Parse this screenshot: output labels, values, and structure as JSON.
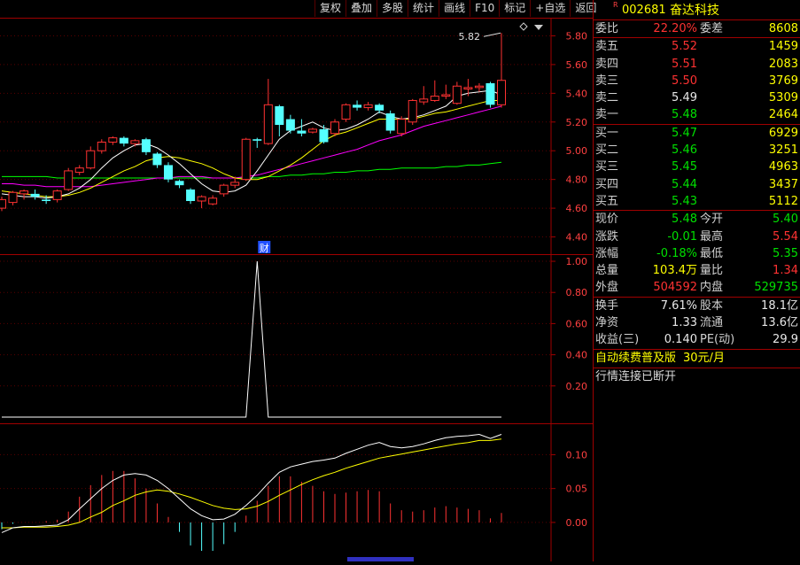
{
  "toolbar": [
    "复权",
    "叠加",
    "多股",
    "统计",
    "画线",
    "F10",
    "标记",
    "+自选",
    "返回"
  ],
  "stock": {
    "code": "002681",
    "name": "奋达科技",
    "flag": "R"
  },
  "weibi": {
    "label": "委比",
    "value": "22.20%",
    "label2": "委差",
    "value2": "8608"
  },
  "asks": [
    {
      "label": "卖五",
      "price": "5.52",
      "vol": "1459",
      "color": "red"
    },
    {
      "label": "卖四",
      "price": "5.51",
      "vol": "2083",
      "color": "red"
    },
    {
      "label": "卖三",
      "price": "5.50",
      "vol": "3769",
      "color": "red"
    },
    {
      "label": "卖二",
      "price": "5.49",
      "vol": "5309",
      "color": "white"
    },
    {
      "label": "卖一",
      "price": "5.48",
      "vol": "2464",
      "color": "green"
    }
  ],
  "bids": [
    {
      "label": "买一",
      "price": "5.47",
      "vol": "6929",
      "color": "green"
    },
    {
      "label": "买二",
      "price": "5.46",
      "vol": "3251",
      "color": "green"
    },
    {
      "label": "买三",
      "price": "5.45",
      "vol": "4963",
      "color": "green"
    },
    {
      "label": "买四",
      "price": "5.44",
      "vol": "3437",
      "color": "green"
    },
    {
      "label": "买五",
      "price": "5.43",
      "vol": "5112",
      "color": "green"
    }
  ],
  "quote": [
    {
      "l1": "现价",
      "v1": "5.48",
      "c1": "green",
      "l2": "今开",
      "v2": "5.40",
      "c2": "green"
    },
    {
      "l1": "涨跌",
      "v1": "-0.01",
      "c1": "green",
      "l2": "最高",
      "v2": "5.54",
      "c2": "red"
    },
    {
      "l1": "涨幅",
      "v1": "-0.18%",
      "c1": "green",
      "l2": "最低",
      "v2": "5.35",
      "c2": "green"
    },
    {
      "l1": "总量",
      "v1": "103.4万",
      "c1": "yellow",
      "l2": "量比",
      "v2": "1.34",
      "c2": "red"
    },
    {
      "l1": "外盘",
      "v1": "504592",
      "c1": "red",
      "l2": "内盘",
      "v2": "529735",
      "c2": "green"
    }
  ],
  "stats": [
    {
      "l1": "换手",
      "v1": "7.61%",
      "l2": "股本",
      "v2": "18.1亿"
    },
    {
      "l1": "净资",
      "v1": "1.33",
      "l2": "流通",
      "v2": "13.6亿"
    },
    {
      "l1": "收益(三)",
      "v1": "0.140",
      "l2": "PE(动)",
      "v2": "29.9"
    }
  ],
  "promo": {
    "text": "自动续费普及版",
    "price": "30元/月"
  },
  "status": "行情连接已断开",
  "colors": {
    "up": "#ff3232",
    "down": "#54ffff",
    "border": "#a00000",
    "ma5": "#ffffff",
    "ma10": "#ffff00",
    "ma20": "#ff00ff",
    "ma60": "#00ff00"
  },
  "chart_data": [
    {
      "type": "candlestick",
      "yticks": [
        "5.80",
        "5.60",
        "5.40",
        "5.20",
        "5.00",
        "4.80",
        "4.60",
        "4.40"
      ],
      "ylim": [
        4.28,
        5.92
      ],
      "annotation": "5.82",
      "marker": "财",
      "candles": [
        [
          4.6,
          4.66,
          4.58,
          4.68
        ],
        [
          4.64,
          4.71,
          4.62,
          4.72
        ],
        [
          4.7,
          4.72,
          4.66,
          4.73
        ],
        [
          4.7,
          4.68,
          4.66,
          4.73
        ],
        [
          4.66,
          4.65,
          4.63,
          4.69
        ],
        [
          4.66,
          4.72,
          4.64,
          4.73
        ],
        [
          4.73,
          4.86,
          4.72,
          4.88
        ],
        [
          4.85,
          4.88,
          4.83,
          4.9
        ],
        [
          4.88,
          5.0,
          4.87,
          5.03
        ],
        [
          5.0,
          5.06,
          4.98,
          5.08
        ],
        [
          5.06,
          5.09,
          5.04,
          5.1
        ],
        [
          5.09,
          5.05,
          5.03,
          5.1
        ],
        [
          5.05,
          5.07,
          5.03,
          5.08
        ],
        [
          5.08,
          4.99,
          4.97,
          5.09
        ],
        [
          4.98,
          4.9,
          4.88,
          4.99
        ],
        [
          4.9,
          4.8,
          4.78,
          4.92
        ],
        [
          4.79,
          4.76,
          4.74,
          4.8
        ],
        [
          4.73,
          4.65,
          4.63,
          4.74
        ],
        [
          4.65,
          4.68,
          4.6,
          4.69
        ],
        [
          4.63,
          4.67,
          4.62,
          4.69
        ],
        [
          4.7,
          4.76,
          4.68,
          4.77
        ],
        [
          4.76,
          4.78,
          4.74,
          4.82
        ],
        [
          4.8,
          5.08,
          4.79,
          5.09
        ],
        [
          5.08,
          5.07,
          5.02,
          5.09
        ],
        [
          5.05,
          5.32,
          5.04,
          5.5
        ],
        [
          5.31,
          5.18,
          5.1,
          5.32
        ],
        [
          5.22,
          5.14,
          5.12,
          5.25
        ],
        [
          5.14,
          5.12,
          5.1,
          5.22
        ],
        [
          5.13,
          5.15,
          5.12,
          5.16
        ],
        [
          5.15,
          5.06,
          5.05,
          5.18
        ],
        [
          5.12,
          5.2,
          5.1,
          5.22
        ],
        [
          5.22,
          5.32,
          5.2,
          5.33
        ],
        [
          5.32,
          5.3,
          5.28,
          5.35
        ],
        [
          5.3,
          5.32,
          5.28,
          5.34
        ],
        [
          5.32,
          5.28,
          5.26,
          5.33
        ],
        [
          5.26,
          5.14,
          5.12,
          5.28
        ],
        [
          5.12,
          5.22,
          5.1,
          5.24
        ],
        [
          5.2,
          5.35,
          5.18,
          5.36
        ],
        [
          5.34,
          5.36,
          5.32,
          5.45
        ],
        [
          5.35,
          5.38,
          5.34,
          5.49
        ],
        [
          5.38,
          5.39,
          5.36,
          5.46
        ],
        [
          5.33,
          5.45,
          5.32,
          5.48
        ],
        [
          5.43,
          5.44,
          5.38,
          5.5
        ],
        [
          5.44,
          5.45,
          5.41,
          5.47
        ],
        [
          5.47,
          5.32,
          5.3,
          5.48
        ],
        [
          5.32,
          5.49,
          5.3,
          5.82
        ]
      ],
      "ma5": [
        4.7,
        4.69,
        4.68,
        4.68,
        4.67,
        4.68,
        4.7,
        4.74,
        4.8,
        4.88,
        4.95,
        5.0,
        5.04,
        5.05,
        5.02,
        4.97,
        4.91,
        4.84,
        4.77,
        4.72,
        4.71,
        4.72,
        4.76,
        4.86,
        4.97,
        5.08,
        5.14,
        5.17,
        5.2,
        5.16,
        5.14,
        5.15,
        5.18,
        5.22,
        5.27,
        5.24,
        5.22,
        5.23,
        5.25,
        5.28,
        5.31,
        5.38,
        5.4,
        5.41,
        5.42,
        5.39
      ],
      "ma10": [
        4.72,
        4.71,
        4.7,
        4.69,
        4.68,
        4.68,
        4.69,
        4.71,
        4.74,
        4.78,
        4.82,
        4.86,
        4.89,
        4.93,
        4.95,
        4.96,
        4.95,
        4.93,
        4.91,
        4.88,
        4.84,
        4.81,
        4.8,
        4.8,
        4.82,
        4.86,
        4.9,
        4.95,
        5.01,
        5.07,
        5.11,
        5.13,
        5.16,
        5.19,
        5.22,
        5.22,
        5.22,
        5.22,
        5.24,
        5.26,
        5.27,
        5.29,
        5.31,
        5.33,
        5.35,
        5.35
      ],
      "ma20": [
        4.77,
        4.77,
        4.76,
        4.76,
        4.75,
        4.75,
        4.75,
        4.75,
        4.75,
        4.76,
        4.77,
        4.78,
        4.79,
        4.8,
        4.81,
        4.81,
        4.82,
        4.82,
        4.82,
        4.81,
        4.81,
        4.81,
        4.82,
        4.83,
        4.85,
        4.87,
        4.89,
        4.91,
        4.93,
        4.95,
        4.97,
        4.99,
        5.01,
        5.04,
        5.07,
        5.09,
        5.11,
        5.14,
        5.17,
        5.19,
        5.21,
        5.23,
        5.25,
        5.27,
        5.29,
        5.31
      ],
      "ma60": [
        4.82,
        4.82,
        4.82,
        4.82,
        4.82,
        4.81,
        4.81,
        4.81,
        4.81,
        4.81,
        4.81,
        4.81,
        4.81,
        4.81,
        4.81,
        4.81,
        4.81,
        4.81,
        4.81,
        4.81,
        4.81,
        4.81,
        4.81,
        4.81,
        4.82,
        4.82,
        4.83,
        4.83,
        4.84,
        4.84,
        4.85,
        4.85,
        4.86,
        4.86,
        4.87,
        4.87,
        4.88,
        4.88,
        4.88,
        4.88,
        4.89,
        4.89,
        4.9,
        4.9,
        4.91,
        4.92
      ]
    },
    {
      "type": "line",
      "yticks": [
        "1.00",
        "0.80",
        "0.60",
        "0.40",
        "0.20"
      ],
      "ylim": [
        -0.04,
        1.04
      ],
      "values": [
        0,
        0,
        0,
        0,
        0,
        0,
        0,
        0,
        0,
        0,
        0,
        0,
        0,
        0,
        0,
        0,
        0,
        0,
        0,
        0,
        0,
        0,
        0,
        1,
        0,
        0,
        0,
        0,
        0,
        0,
        0,
        0,
        0,
        0,
        0,
        0,
        0,
        0,
        0,
        0,
        0,
        0,
        0,
        0,
        0,
        0
      ]
    },
    {
      "type": "macd",
      "yticks": [
        "0.10",
        "0.05",
        "0.00"
      ],
      "ylim": [
        -0.055,
        0.145
      ],
      "dif": [
        -0.015,
        -0.008,
        -0.006,
        -0.006,
        -0.005,
        -0.004,
        0.004,
        0.02,
        0.035,
        0.05,
        0.062,
        0.07,
        0.072,
        0.07,
        0.062,
        0.05,
        0.035,
        0.02,
        0.01,
        0.004,
        0.005,
        0.012,
        0.025,
        0.04,
        0.058,
        0.074,
        0.082,
        0.086,
        0.09,
        0.092,
        0.095,
        0.102,
        0.108,
        0.114,
        0.118,
        0.112,
        0.11,
        0.112,
        0.116,
        0.121,
        0.125,
        0.127,
        0.128,
        0.13,
        0.124,
        0.13
      ],
      "dea": [
        -0.008,
        -0.008,
        -0.007,
        -0.007,
        -0.007,
        -0.006,
        -0.004,
        0.0,
        0.008,
        0.015,
        0.025,
        0.032,
        0.04,
        0.045,
        0.048,
        0.046,
        0.042,
        0.037,
        0.031,
        0.025,
        0.021,
        0.019,
        0.02,
        0.024,
        0.031,
        0.04,
        0.048,
        0.056,
        0.063,
        0.069,
        0.074,
        0.08,
        0.085,
        0.09,
        0.095,
        0.098,
        0.101,
        0.104,
        0.107,
        0.11,
        0.113,
        0.116,
        0.118,
        0.121,
        0.121,
        0.123
      ],
      "hist": [
        -0.01,
        -0.002,
        0.0,
        0.0,
        0.002,
        0.004,
        0.016,
        0.038,
        0.055,
        0.07,
        0.076,
        0.076,
        0.065,
        0.05,
        0.028,
        0.008,
        -0.014,
        -0.034,
        -0.042,
        -0.042,
        -0.032,
        -0.014,
        0.01,
        0.032,
        0.054,
        0.068,
        0.068,
        0.06,
        0.054,
        0.046,
        0.042,
        0.044,
        0.046,
        0.048,
        0.046,
        0.028,
        0.018,
        0.016,
        0.018,
        0.022,
        0.024,
        0.022,
        0.02,
        0.018,
        0.006,
        0.014
      ]
    }
  ]
}
